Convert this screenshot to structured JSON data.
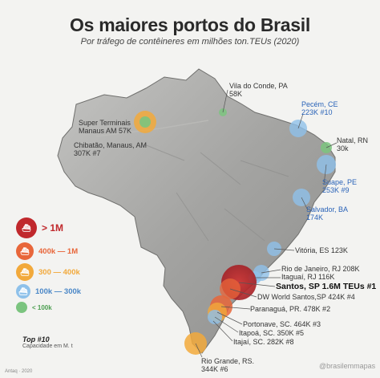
{
  "title": "Os maiores portos do Brasil",
  "subtitle": "Por tráfego de contêineres em milhões ton.TEUs (2020)",
  "legend": [
    {
      "label": "> 1M",
      "color": "#c0282c",
      "text_color": "#c0282c"
    },
    {
      "label": "400k — 1M",
      "color": "#e8663a",
      "text_color": "#e8663a"
    },
    {
      "label": "300 — 400k",
      "color": "#f2a93b",
      "text_color": "#f2a93b"
    },
    {
      "label": "100k — 300k",
      "color": "#8ec1ea",
      "text_color": "#4a87c7"
    },
    {
      "label": "< 100k",
      "color": "#7bc47f",
      "text_color": "#4b9e50"
    }
  ],
  "ports": [
    {
      "line1": "Vila do Conde, PA",
      "line2": "58K",
      "category": "< 100k"
    },
    {
      "line1": "Pecém, CE",
      "line2": "223K #10",
      "category": "100k — 300k"
    },
    {
      "line1": "Natal, RN",
      "line2": "30k",
      "category": "< 100k"
    },
    {
      "line1": "Suape, PE",
      "line2": "253K #9",
      "category": "100k — 300k"
    },
    {
      "line1": "Salvador, BA",
      "line2": "174K",
      "category": "100k — 300k"
    },
    {
      "line1": "Vitória, ES 123K",
      "line2": "",
      "category": "100k — 300k"
    },
    {
      "line1": "Rio de Janeiro, RJ 208K",
      "line2": "",
      "category": "100k — 300k"
    },
    {
      "line1": "Itaguaí, RJ 116K",
      "line2": "",
      "category": "100k — 300k"
    },
    {
      "line1": "Santos, SP 1.6M TEUs #1",
      "line2": "",
      "category": "> 1M"
    },
    {
      "line1": "DW World Santos,SP 424K #4",
      "line2": "",
      "category": "400k — 1M"
    },
    {
      "line1": "Paranaguá, PR. 478K #2",
      "line2": "",
      "category": "400k — 1M"
    },
    {
      "line1": "Portonave, SC. 464K #3",
      "line2": "",
      "category": "400k — 1M"
    },
    {
      "line1": "Itapoá, SC. 350K #5",
      "line2": "",
      "category": "300 — 400k"
    },
    {
      "line1": "Itajaí, SC. 282K #8",
      "line2": "",
      "category": "100k — 300k"
    },
    {
      "line1": "Rio Grande, RS.",
      "line2": "344K #6",
      "category": "300 — 400k"
    },
    {
      "line1": "Super Terminais",
      "line2": "Manaus AM 57K",
      "category": "< 100k"
    },
    {
      "line1": "Chibatão, Manaus, AM",
      "line2": "307K #7",
      "category": "300 — 400k"
    }
  ],
  "top10": "Top #10",
  "capacity_note": "Capacidade em M. t",
  "credit_left": "Antaq · 2020",
  "credit_right": "@brasilemmapas",
  "colors": {
    "land": "#a9a9a7",
    "land_dark": "#7f7f7d",
    "background": "#f3f3f1"
  }
}
